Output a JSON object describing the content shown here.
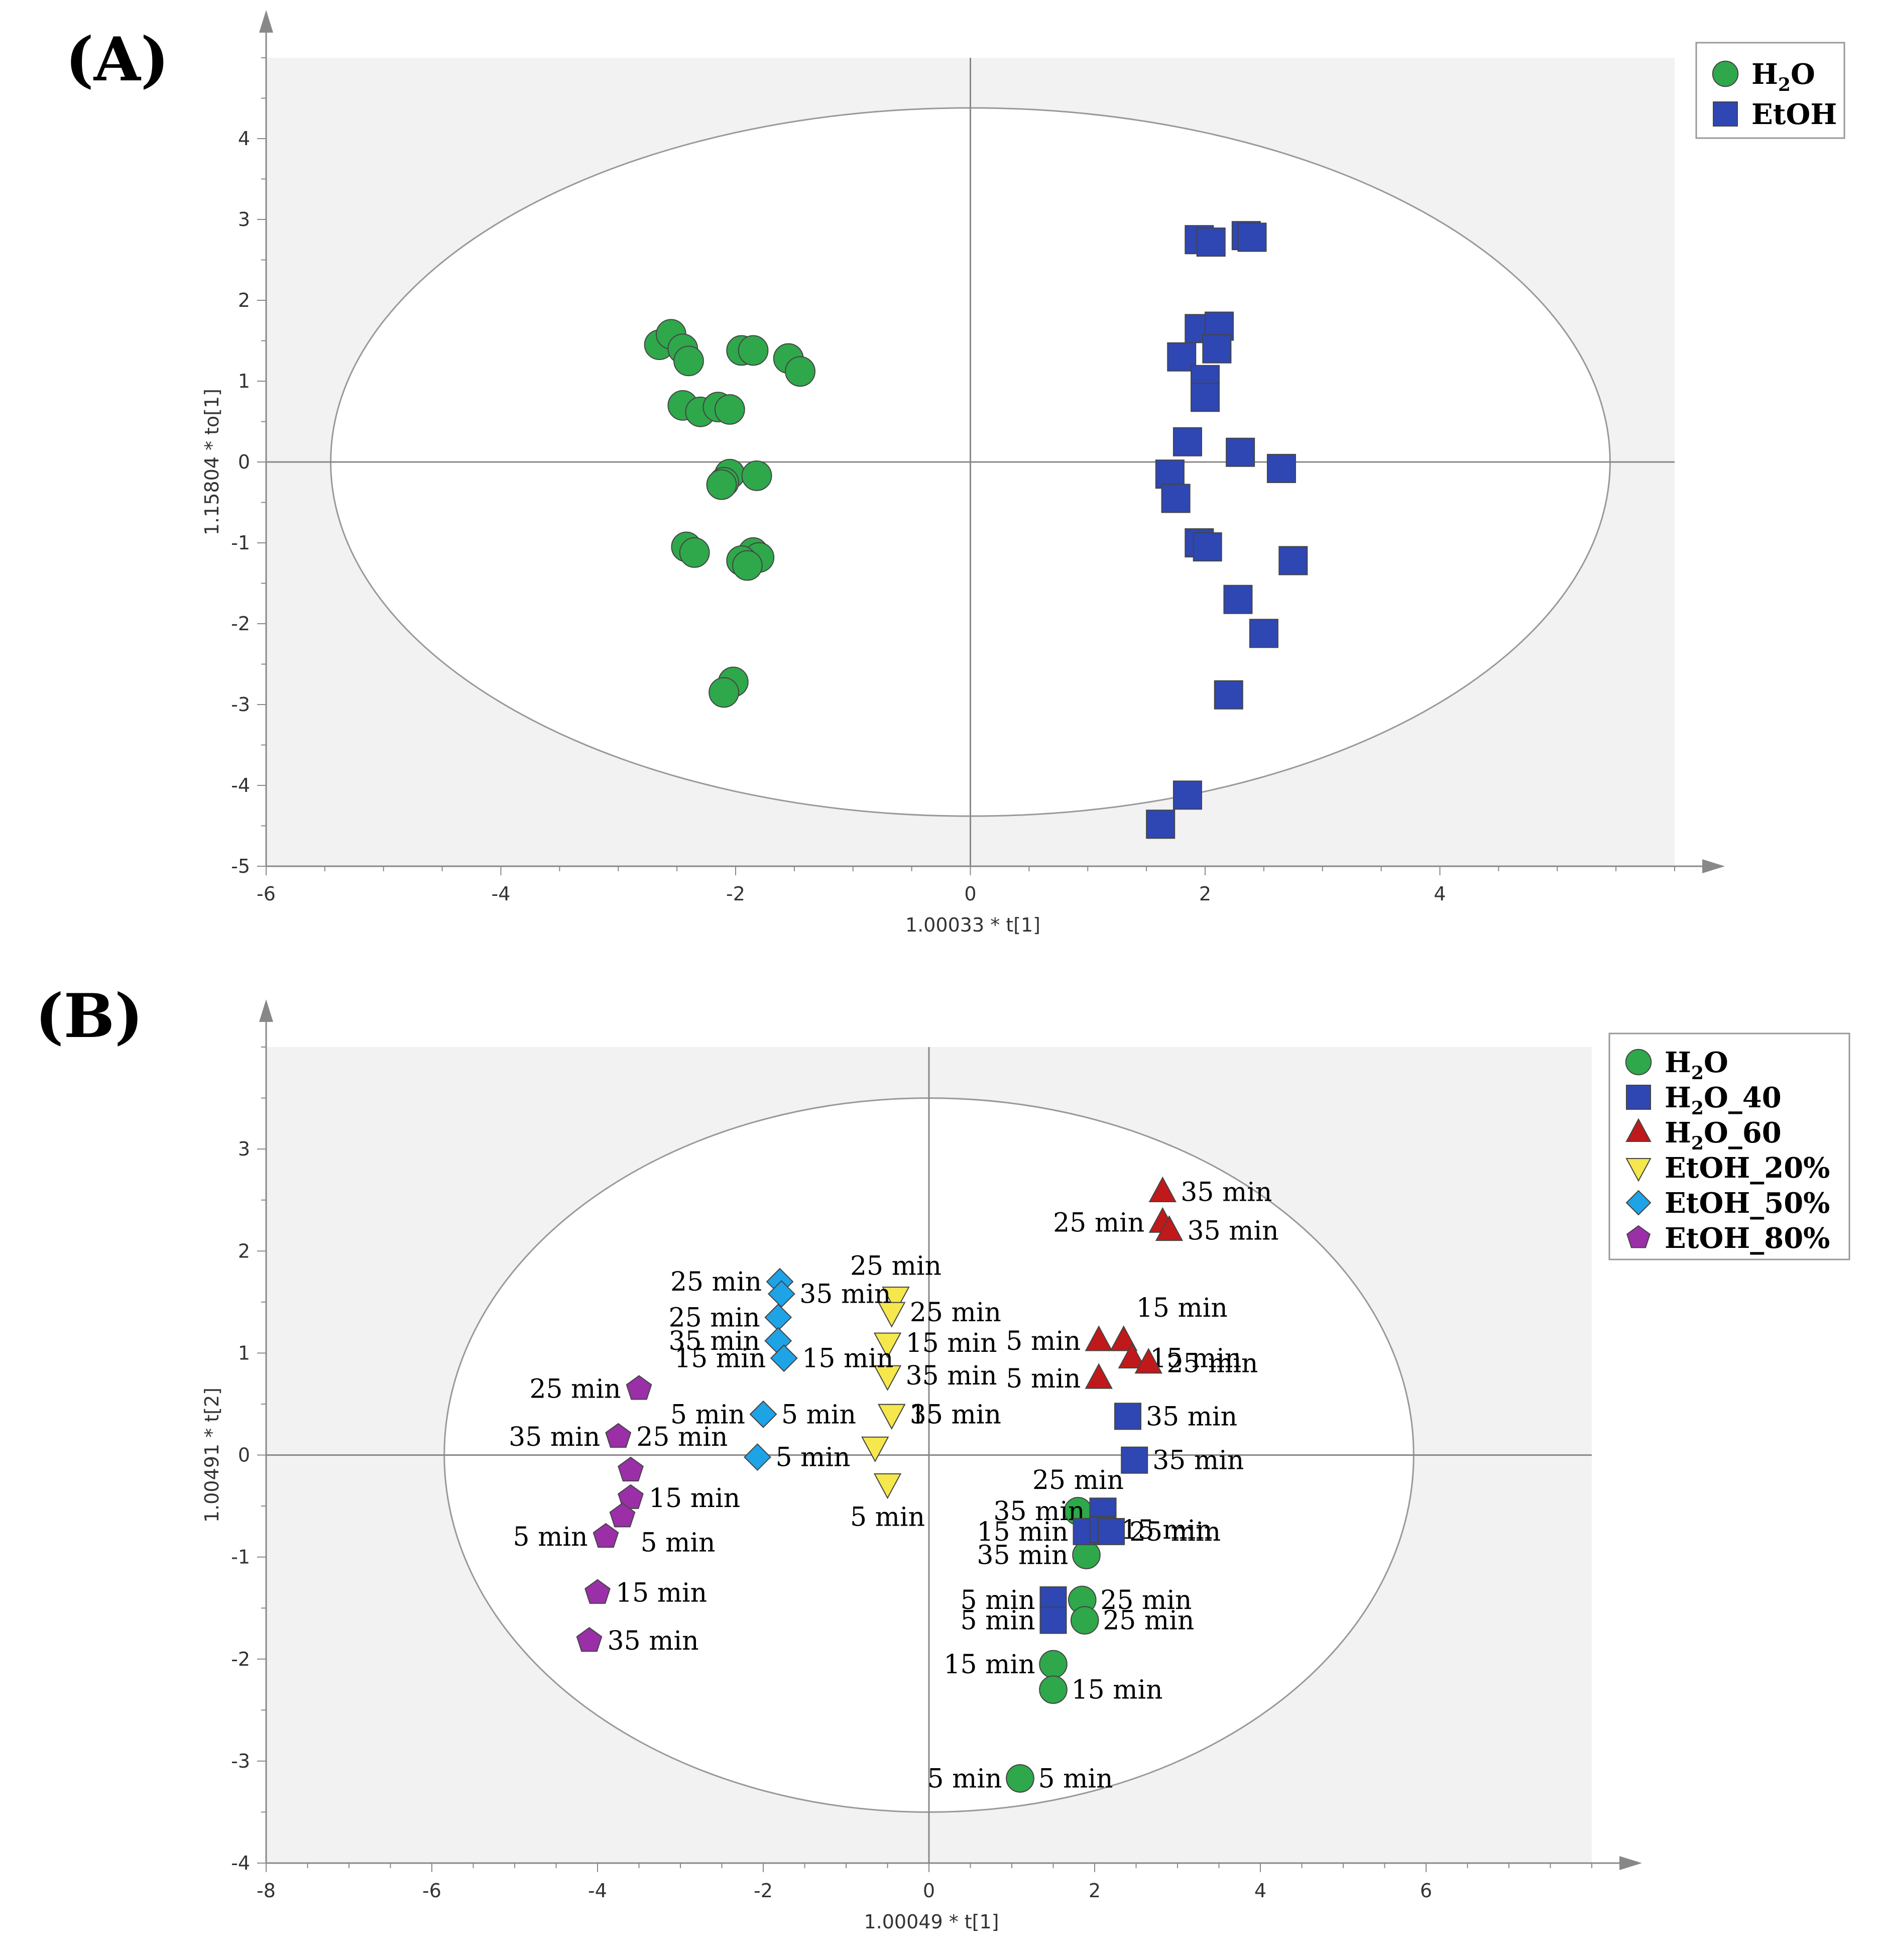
{
  "panels": [
    {
      "label": "(A)",
      "legend": [
        {
          "name": "H2O",
          "main": "H",
          "sub": "2",
          "rest": "O",
          "color": "#2ea84a",
          "shape": "circle"
        },
        {
          "name": "EtOH",
          "main": "EtOH",
          "sub": "",
          "rest": "",
          "color": "#2f47b3",
          "shape": "square"
        }
      ]
    },
    {
      "label": "(B)",
      "legend": [
        {
          "name": "H2O",
          "main": "H",
          "sub": "2",
          "rest": "O",
          "color": "#2ea84a",
          "shape": "circle"
        },
        {
          "name": "H2O_40",
          "main": "H",
          "sub": "2",
          "rest": "O_40",
          "color": "#2f47b3",
          "shape": "square"
        },
        {
          "name": "H2O_60",
          "main": "H",
          "sub": "2",
          "rest": "O_60",
          "color": "#c0191b",
          "shape": "triangle-up"
        },
        {
          "name": "EtOH_20%",
          "main": "EtOH_20%",
          "sub": "",
          "rest": "",
          "color": "#f5e74c",
          "shape": "triangle-down"
        },
        {
          "name": "EtOH_50%",
          "main": "EtOH_50%",
          "sub": "",
          "rest": "",
          "color": "#1ea3e6",
          "shape": "diamond"
        },
        {
          "name": "EtOH_80%",
          "main": "EtOH_80%",
          "sub": "",
          "rest": "",
          "color": "#9a2fa8",
          "shape": "pentagon"
        }
      ]
    }
  ],
  "chart_data": [
    {
      "type": "scatter",
      "title": "(A)",
      "xlabel": "1.00033 * t[1]",
      "ylabel": "1.15804 * to[1]",
      "xlim": [
        -6,
        6
      ],
      "ylim": [
        -5,
        5
      ],
      "xticks": [
        -6,
        -4,
        -2,
        0,
        2,
        4
      ],
      "yticks": [
        -5,
        -4,
        -3,
        -2,
        -1,
        0,
        1,
        2,
        3,
        4
      ],
      "ellipse": {
        "cx": 0,
        "cy": 0,
        "rx": 5.45,
        "ry": 4.38
      },
      "series": [
        {
          "name": "H2O",
          "shape": "circle",
          "color": "#2ea84a",
          "points": [
            [
              -2.65,
              1.45
            ],
            [
              -2.55,
              1.58
            ],
            [
              -2.45,
              1.4
            ],
            [
              -2.4,
              1.25
            ],
            [
              -1.95,
              1.38
            ],
            [
              -1.85,
              1.38
            ],
            [
              -1.55,
              1.28
            ],
            [
              -1.45,
              1.12
            ],
            [
              -2.45,
              0.7
            ],
            [
              -2.3,
              0.62
            ],
            [
              -2.15,
              0.68
            ],
            [
              -2.05,
              0.65
            ],
            [
              -2.05,
              -0.15
            ],
            [
              -2.1,
              -0.25
            ],
            [
              -2.12,
              -0.28
            ],
            [
              -1.82,
              -0.17
            ],
            [
              -2.42,
              -1.05
            ],
            [
              -2.35,
              -1.12
            ],
            [
              -1.85,
              -1.12
            ],
            [
              -1.8,
              -1.18
            ],
            [
              -1.95,
              -1.22
            ],
            [
              -1.9,
              -1.28
            ],
            [
              -2.02,
              -2.72
            ],
            [
              -2.1,
              -2.85
            ]
          ]
        },
        {
          "name": "EtOH",
          "shape": "square",
          "color": "#2f47b3",
          "points": [
            [
              1.95,
              2.75
            ],
            [
              2.05,
              2.72
            ],
            [
              2.35,
              2.8
            ],
            [
              2.4,
              2.78
            ],
            [
              1.95,
              1.65
            ],
            [
              2.12,
              1.68
            ],
            [
              1.8,
              1.3
            ],
            [
              2.1,
              1.4
            ],
            [
              2.0,
              1.02
            ],
            [
              2.0,
              0.8
            ],
            [
              1.85,
              0.25
            ],
            [
              2.3,
              0.12
            ],
            [
              2.65,
              -0.08
            ],
            [
              1.7,
              -0.15
            ],
            [
              1.75,
              -0.45
            ],
            [
              1.95,
              -1.0
            ],
            [
              2.02,
              -1.05
            ],
            [
              2.75,
              -1.22
            ],
            [
              2.28,
              -1.7
            ],
            [
              2.5,
              -2.12
            ],
            [
              2.2,
              -2.88
            ],
            [
              1.85,
              -4.12
            ],
            [
              1.62,
              -4.48
            ]
          ]
        }
      ]
    },
    {
      "type": "scatter",
      "title": "(B)",
      "xlabel": "1.00049 * t[1]",
      "ylabel": "1.00491 * t[2]",
      "xlim": [
        -8,
        8
      ],
      "ylim": [
        -4,
        4
      ],
      "xticks": [
        -8,
        -6,
        -4,
        -2,
        0,
        2,
        4,
        6
      ],
      "yticks": [
        -4,
        -3,
        -2,
        -1,
        0,
        1,
        2,
        3
      ],
      "ellipse": {
        "cx": 0,
        "cy": 0,
        "rx": 5.85,
        "ry": 3.5
      },
      "series": [
        {
          "name": "H2O",
          "shape": "circle",
          "color": "#2ea84a",
          "points": [
            {
              "x": 1.8,
              "y": -0.55,
              "label": "25 min",
              "anchor": "above"
            },
            {
              "x": 1.9,
              "y": -0.98,
              "label": "35 min",
              "anchor": "left"
            },
            {
              "x": 1.85,
              "y": -1.42,
              "label": "25 min",
              "anchor": "right"
            },
            {
              "x": 1.88,
              "y": -1.62,
              "label": "25 min",
              "anchor": "right"
            },
            {
              "x": 1.5,
              "y": -2.05,
              "label": "15 min",
              "anchor": "left"
            },
            {
              "x": 1.5,
              "y": -2.3,
              "label": "15 min",
              "anchor": "right"
            },
            {
              "x": 1.1,
              "y": -3.17,
              "label": "5 min",
              "anchor": "left"
            },
            {
              "x": 1.1,
              "y": -3.17,
              "label": "5 min",
              "anchor": "right"
            }
          ]
        },
        {
          "name": "H2O_40",
          "shape": "square",
          "color": "#2f47b3",
          "points": [
            {
              "x": 2.4,
              "y": 0.38,
              "label": "35 min",
              "anchor": "right"
            },
            {
              "x": 2.48,
              "y": -0.05,
              "label": "35 min",
              "anchor": "right"
            },
            {
              "x": 2.1,
              "y": -0.55,
              "label": "35 min",
              "anchor": "left"
            },
            {
              "x": 1.9,
              "y": -0.75,
              "label": "15 min",
              "anchor": "left"
            },
            {
              "x": 2.1,
              "y": -0.73,
              "label": "15 min",
              "anchor": "right"
            },
            {
              "x": 2.2,
              "y": -0.75,
              "label": "25 min",
              "anchor": "right"
            },
            {
              "x": 1.5,
              "y": -1.42,
              "label": "5 min",
              "anchor": "left"
            },
            {
              "x": 1.5,
              "y": -1.62,
              "label": "5 min",
              "anchor": "left"
            }
          ]
        },
        {
          "name": "H2O_60",
          "shape": "triangle-up",
          "color": "#c0191b",
          "points": [
            {
              "x": 2.82,
              "y": 2.58,
              "label": "35 min",
              "anchor": "right"
            },
            {
              "x": 2.82,
              "y": 2.28,
              "label": "25 min",
              "anchor": "left"
            },
            {
              "x": 2.9,
              "y": 2.2,
              "label": "35 min",
              "anchor": "right"
            },
            {
              "x": 2.05,
              "y": 1.12,
              "label": "5 min",
              "anchor": "left"
            },
            {
              "x": 2.35,
              "y": 1.12,
              "label": "15 min",
              "anchor": "above-right"
            },
            {
              "x": 2.45,
              "y": 0.95,
              "label": "15 min",
              "anchor": "right"
            },
            {
              "x": 2.65,
              "y": 0.9,
              "label": "25 min",
              "anchor": "right"
            },
            {
              "x": 2.05,
              "y": 0.75,
              "label": "5 min",
              "anchor": "left"
            }
          ]
        },
        {
          "name": "EtOH_20%",
          "shape": "triangle-down",
          "color": "#f5e74c",
          "points": [
            {
              "x": -0.4,
              "y": 1.55,
              "label": "25 min",
              "anchor": "above"
            },
            {
              "x": -0.45,
              "y": 1.4,
              "label": "25 min",
              "anchor": "right"
            },
            {
              "x": -0.5,
              "y": 1.1,
              "label": "15 min",
              "anchor": "right"
            },
            {
              "x": -0.5,
              "y": 0.78,
              "label": "35 min",
              "anchor": "right"
            },
            {
              "x": -0.45,
              "y": 0.4,
              "label": "35 min",
              "anchor": "right"
            },
            {
              "x": -0.45,
              "y": 0.4,
              "label": "15 min",
              "anchor": "right"
            },
            {
              "x": -0.65,
              "y": 0.08,
              "label": "",
              "anchor": "none"
            },
            {
              "x": -0.5,
              "y": -0.28,
              "label": "5 min",
              "anchor": "below"
            }
          ]
        },
        {
          "name": "EtOH_50%",
          "shape": "diamond",
          "color": "#1ea3e6",
          "points": [
            {
              "x": -1.8,
              "y": 1.7,
              "label": "25 min",
              "anchor": "left"
            },
            {
              "x": -1.78,
              "y": 1.58,
              "label": "35 min",
              "anchor": "right"
            },
            {
              "x": -1.82,
              "y": 1.35,
              "label": "25 min",
              "anchor": "left"
            },
            {
              "x": -1.82,
              "y": 1.12,
              "label": "35 min",
              "anchor": "left"
            },
            {
              "x": -1.75,
              "y": 0.95,
              "label": "15 min",
              "anchor": "left"
            },
            {
              "x": -1.75,
              "y": 0.95,
              "label": "15 min",
              "anchor": "right"
            },
            {
              "x": -2.0,
              "y": 0.4,
              "label": "5 min",
              "anchor": "left"
            },
            {
              "x": -2.0,
              "y": 0.4,
              "label": "5 min",
              "anchor": "right"
            },
            {
              "x": -2.07,
              "y": -0.02,
              "label": "5 min",
              "anchor": "right"
            }
          ]
        },
        {
          "name": "EtOH_80%",
          "shape": "pentagon",
          "color": "#9a2fa8",
          "points": [
            {
              "x": -3.5,
              "y": 0.65,
              "label": "25 min",
              "anchor": "left"
            },
            {
              "x": -3.75,
              "y": 0.18,
              "label": "35 min",
              "anchor": "left"
            },
            {
              "x": -3.75,
              "y": 0.18,
              "label": "25 min",
              "anchor": "right"
            },
            {
              "x": -3.6,
              "y": -0.15,
              "label": "",
              "anchor": "none"
            },
            {
              "x": -3.6,
              "y": -0.42,
              "label": "15 min",
              "anchor": "right"
            },
            {
              "x": -3.7,
              "y": -0.6,
              "label": "5 min",
              "anchor": "right-below"
            },
            {
              "x": -3.9,
              "y": -0.8,
              "label": "5 min",
              "anchor": "left"
            },
            {
              "x": -4.0,
              "y": -1.35,
              "label": "15 min",
              "anchor": "right"
            },
            {
              "x": -4.1,
              "y": -1.82,
              "label": "35 min",
              "anchor": "right"
            }
          ]
        }
      ]
    }
  ]
}
